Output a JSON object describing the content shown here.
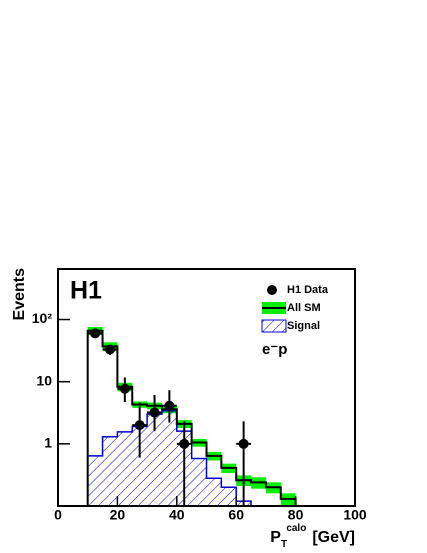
{
  "chart_data": {
    "type": "histogram",
    "log_y": true,
    "xlim": [
      0,
      100
    ],
    "ylim": [
      0.1,
      650
    ],
    "xticks": [
      0,
      20,
      40,
      60,
      80,
      100
    ],
    "yticks": [
      1,
      10,
      {
        "value": 100,
        "label": "10²"
      }
    ],
    "ylabel": "Events",
    "xlabel": [
      "P",
      "T",
      "calo",
      "[GeV]"
    ],
    "annotations": [
      "H1",
      "e⁻p"
    ],
    "legend": "upper right",
    "bins": [
      10,
      15,
      20,
      25,
      30,
      35,
      40,
      45,
      50,
      55,
      60,
      65,
      70,
      75,
      80
    ],
    "series": [
      {
        "name": "All SM",
        "color": "#000000",
        "band_color": "#00ee00",
        "values": [
          66,
          37,
          8.3,
          4.3,
          4.1,
          3.6,
          2.1,
          1.05,
          0.64,
          0.41,
          0.26,
          0.24,
          0.2,
          0.13
        ],
        "uncertainty": [
          10,
          6,
          1.3,
          0.5,
          0.5,
          0.5,
          0.3,
          0.15,
          0.1,
          0.07,
          0.05,
          0.05,
          0.04,
          0.03
        ]
      },
      {
        "name": "Signal",
        "color": "#0000cc",
        "values": [
          0.64,
          1.3,
          1.56,
          1.9,
          3,
          3.4,
          1.6,
          0.58,
          0.28,
          0.2,
          0.12,
          null,
          null,
          null
        ]
      }
    ],
    "points": {
      "name": "H1 Data",
      "color": "#000000",
      "x": [
        12.5,
        17.5,
        22.5,
        27.5,
        32.5,
        37.5,
        42.5,
        62.5
      ],
      "values": [
        60,
        33,
        7.7,
        2,
        3.2,
        4.1,
        1,
        1
      ],
      "errors_low": [
        8,
        6,
        3,
        1.4,
        1.6,
        1.9,
        0.9,
        0.9
      ],
      "errors_high": [
        8,
        6,
        4,
        2.6,
        2.9,
        3.2,
        1.3,
        1.3
      ]
    }
  }
}
